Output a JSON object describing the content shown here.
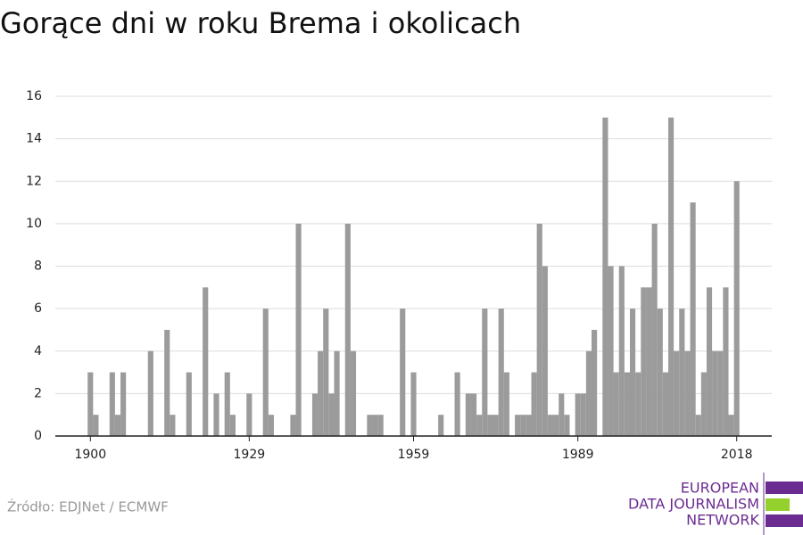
{
  "chart_data": {
    "type": "bar",
    "title": "Gorące dni w roku Brema i okolicach",
    "x": [
      1900,
      1901,
      1902,
      1903,
      1904,
      1905,
      1906,
      1907,
      1908,
      1909,
      1910,
      1911,
      1912,
      1913,
      1914,
      1915,
      1916,
      1917,
      1918,
      1919,
      1920,
      1921,
      1922,
      1923,
      1924,
      1925,
      1926,
      1927,
      1928,
      1929,
      1930,
      1931,
      1932,
      1933,
      1934,
      1935,
      1936,
      1937,
      1938,
      1939,
      1940,
      1941,
      1942,
      1943,
      1944,
      1945,
      1946,
      1947,
      1948,
      1949,
      1950,
      1951,
      1952,
      1953,
      1954,
      1955,
      1956,
      1957,
      1958,
      1959,
      1960,
      1961,
      1962,
      1963,
      1964,
      1965,
      1966,
      1967,
      1968,
      1969,
      1970,
      1971,
      1972,
      1973,
      1974,
      1975,
      1976,
      1977,
      1978,
      1979,
      1980,
      1981,
      1982,
      1983,
      1984,
      1985,
      1986,
      1987,
      1988,
      1989,
      1990,
      1991,
      1992,
      1993,
      1994,
      1995,
      1996,
      1997,
      1998,
      1999,
      2000,
      2001,
      2002,
      2003,
      2004,
      2005,
      2006,
      2007,
      2008,
      2009,
      2010,
      2011,
      2012,
      2013,
      2014,
      2015,
      2016,
      2017,
      2018
    ],
    "values": [
      3,
      1,
      0,
      0,
      3,
      1,
      3,
      0,
      0,
      0,
      0,
      4,
      0,
      0,
      5,
      1,
      0,
      0,
      3,
      0,
      0,
      7,
      0,
      2,
      0,
      3,
      1,
      0,
      0,
      2,
      0,
      0,
      6,
      1,
      0,
      0,
      0,
      1,
      10,
      0,
      0,
      2,
      4,
      6,
      2,
      4,
      0,
      10,
      4,
      0,
      0,
      1,
      1,
      1,
      0,
      0,
      0,
      6,
      0,
      3,
      0,
      0,
      0,
      0,
      1,
      0,
      0,
      3,
      0,
      2,
      2,
      1,
      6,
      1,
      1,
      6,
      3,
      0,
      1,
      1,
      1,
      3,
      10,
      8,
      1,
      1,
      2,
      1,
      0,
      2,
      2,
      4,
      5,
      0,
      15,
      8,
      3,
      8,
      3,
      6,
      3,
      7,
      7,
      10,
      6,
      3,
      15,
      4,
      6,
      4,
      11,
      1,
      3,
      7,
      4,
      4,
      7,
      1,
      12
    ],
    "color": "#9b9b9b",
    "xlim": [
      1893.6,
      2024.4
    ],
    "xticks": [
      1900,
      1929,
      1959,
      1989,
      2018
    ],
    "ylim": [
      0,
      16
    ],
    "yticks": [
      0,
      2,
      4,
      6,
      8,
      10,
      12,
      14,
      16
    ],
    "grid": true
  },
  "footer": {
    "source": "Źródło: EDJNet / ECMWF",
    "logo": [
      "EUROPEAN",
      "DATA JOURNALISM",
      "NETWORK"
    ]
  }
}
